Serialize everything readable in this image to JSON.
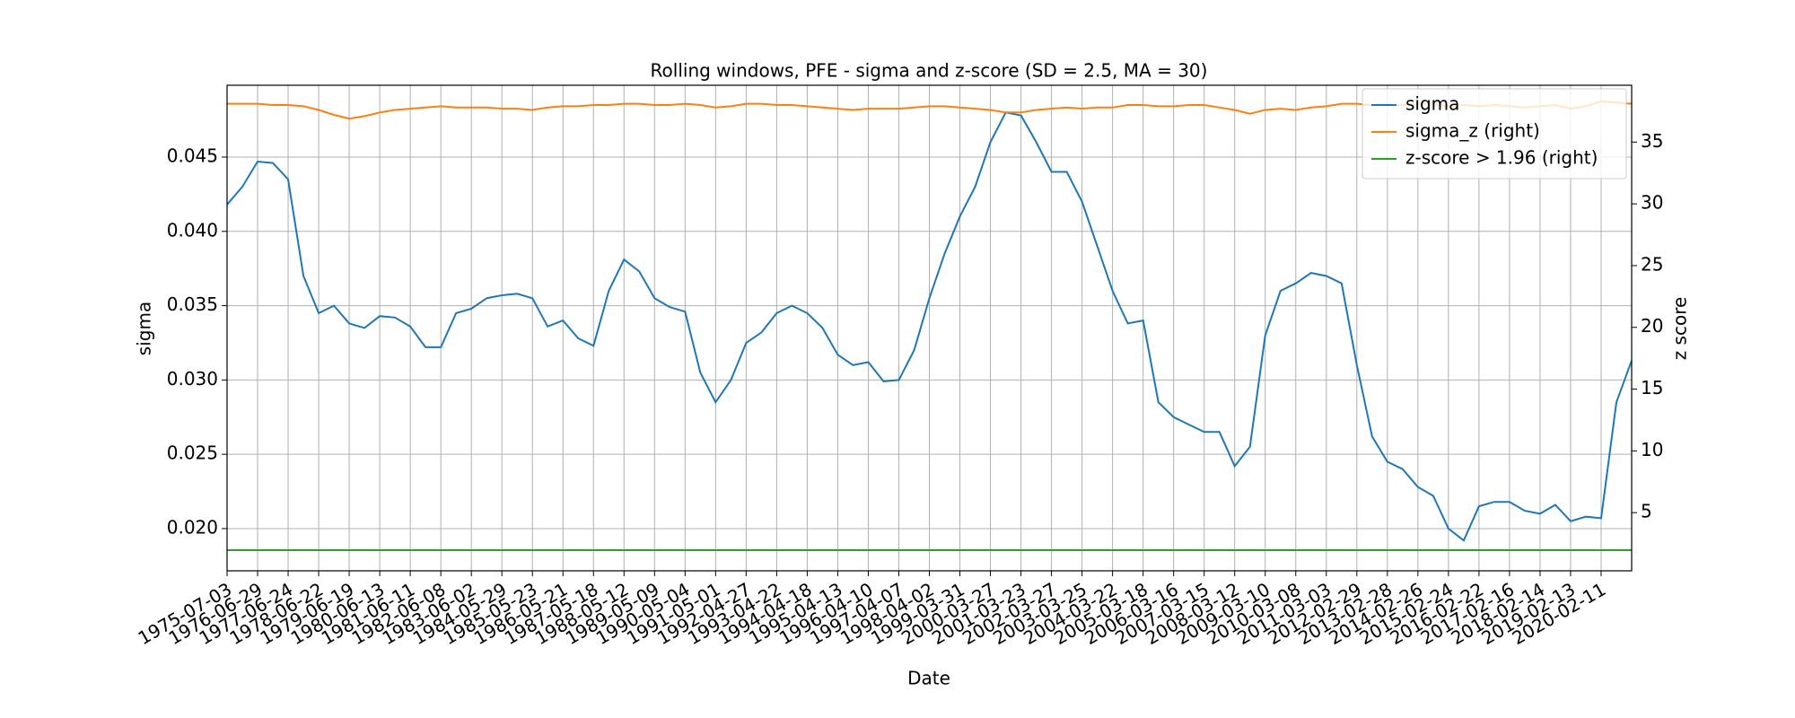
{
  "chart_data": {
    "type": "line",
    "title": "Rolling windows, PFE - sigma and z-score (SD = 2.5, MA = 30)",
    "x_label": "Date",
    "y_label": "sigma",
    "y2_label": "z score",
    "categories": [
      "1975-07-03",
      null,
      "1976-06-29",
      null,
      "1977-06-24",
      null,
      "1978-06-22",
      null,
      "1979-06-19",
      null,
      "1980-06-13",
      null,
      "1981-06-11",
      null,
      "1982-06-08",
      null,
      "1983-06-02",
      null,
      "1984-05-29",
      null,
      "1985-05-23",
      null,
      "1986-05-21",
      null,
      "1987-05-18",
      null,
      "1988-05-12",
      null,
      "1989-05-09",
      null,
      "1990-05-04",
      null,
      "1991-05-01",
      null,
      "1992-04-27",
      null,
      "1993-04-22",
      null,
      "1994-04-18",
      null,
      "1995-04-13",
      null,
      "1996-04-10",
      null,
      "1997-04-07",
      null,
      "1998-04-02",
      null,
      "1999-03-31",
      null,
      "2000-03-27",
      null,
      "2001-03-23",
      null,
      "2002-03-27",
      null,
      "2003-03-25",
      null,
      "2004-03-22",
      null,
      "2005-03-18",
      null,
      "2006-03-16",
      null,
      "2007-03-15",
      null,
      "2008-03-12",
      null,
      "2009-03-10",
      null,
      "2010-03-08",
      null,
      "2011-03-03",
      null,
      "2012-02-29",
      null,
      "2013-02-28",
      null,
      "2014-02-26",
      null,
      "2015-02-24",
      null,
      "2016-02-22",
      null,
      "2017-02-16",
      null,
      "2018-02-14",
      null,
      "2019-02-13",
      null,
      "2020-02-11",
      null,
      null
    ],
    "series": [
      {
        "name": "sigma",
        "color": "#1f77b4",
        "axis": "y",
        "values": [
          0.0418,
          0.043,
          0.0447,
          0.0446,
          0.0435,
          0.037,
          0.0345,
          0.035,
          0.0338,
          0.0335,
          0.0343,
          0.0342,
          0.0336,
          0.0322,
          0.0322,
          0.0345,
          0.0348,
          0.0355,
          0.0357,
          0.0358,
          0.0355,
          0.0336,
          0.034,
          0.0328,
          0.0323,
          0.036,
          0.0381,
          0.0373,
          0.0355,
          0.0349,
          0.0346,
          0.0305,
          0.0285,
          0.03,
          0.0325,
          0.0332,
          0.0345,
          0.035,
          0.0345,
          0.0335,
          0.0317,
          0.031,
          0.0312,
          0.0299,
          0.03,
          0.032,
          0.0355,
          0.0385,
          0.041,
          0.043,
          0.046,
          0.048,
          0.0478,
          0.046,
          0.044,
          0.044,
          0.042,
          0.039,
          0.036,
          0.0338,
          0.034,
          0.0285,
          0.0275,
          0.027,
          0.0265,
          0.0265,
          0.0242,
          0.0255,
          0.033,
          0.036,
          0.0365,
          0.0372,
          0.037,
          0.0365,
          0.031,
          0.0262,
          0.0245,
          0.024,
          0.0228,
          0.0222,
          0.02,
          0.0192,
          0.0215,
          0.0218,
          0.0218,
          0.0212,
          0.021,
          0.0216,
          0.0205,
          0.0208,
          0.0207,
          0.0285,
          0.0313
        ]
      },
      {
        "name": "sigma_z (right)",
        "color": "#ff7f0e",
        "axis": "y2",
        "values": [
          38.1,
          38.1,
          38.1,
          38.0,
          38.0,
          37.9,
          37.6,
          37.2,
          36.9,
          37.1,
          37.4,
          37.6,
          37.7,
          37.8,
          37.9,
          37.8,
          37.8,
          37.8,
          37.7,
          37.7,
          37.6,
          37.8,
          37.9,
          37.9,
          38.0,
          38.0,
          38.1,
          38.1,
          38.0,
          38.0,
          38.1,
          38.0,
          37.8,
          37.9,
          38.1,
          38.1,
          38.0,
          38.0,
          37.9,
          37.8,
          37.7,
          37.6,
          37.7,
          37.7,
          37.7,
          37.8,
          37.9,
          37.9,
          37.8,
          37.7,
          37.6,
          37.4,
          37.4,
          37.6,
          37.7,
          37.8,
          37.7,
          37.8,
          37.8,
          38.0,
          38.0,
          37.9,
          37.9,
          38.0,
          38.0,
          37.8,
          37.6,
          37.3,
          37.6,
          37.7,
          37.6,
          37.8,
          37.9,
          38.1,
          38.1,
          38.0,
          38.0,
          38.0,
          38.1,
          38.1,
          37.9,
          38.0,
          37.9,
          38.0,
          37.9,
          37.8,
          37.9,
          38.0,
          37.7,
          37.9,
          38.3,
          38.2,
          38.1
        ]
      },
      {
        "name": "z-score > 1.96 (right)",
        "color": "#2ca02c",
        "axis": "y2",
        "value": 1.96
      }
    ],
    "ylim": [
      0.01716,
      0.04983
    ],
    "yticks": [
      {
        "value": 0.02,
        "label": "0.020"
      },
      {
        "value": 0.025,
        "label": "0.025"
      },
      {
        "value": 0.03,
        "label": "0.030"
      },
      {
        "value": 0.035,
        "label": "0.035"
      },
      {
        "value": 0.04,
        "label": "0.040"
      },
      {
        "value": 0.045,
        "label": "0.045"
      }
    ],
    "y2lim": [
      0.29,
      39.6
    ],
    "y2ticks": [
      5,
      10,
      15,
      20,
      25,
      30,
      35
    ],
    "grid": true,
    "legend": "upper right"
  }
}
